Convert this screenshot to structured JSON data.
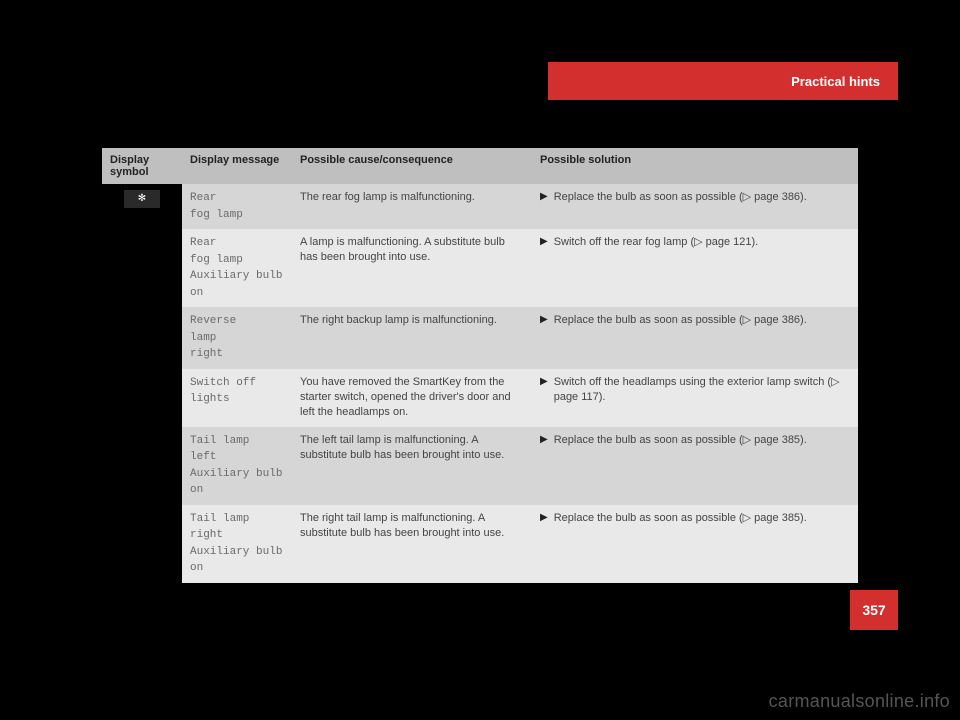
{
  "header": {
    "title": "Practical hints"
  },
  "page_number": "357",
  "watermark": "carmanualsonline.info",
  "table": {
    "columns": [
      "Display symbol",
      "Display message",
      "Possible cause/consequence",
      "Possible solution"
    ],
    "symbol_glyph": "✻",
    "rows": [
      {
        "message": "Rear\nfog lamp",
        "cause": "The rear fog lamp is malfunctioning.",
        "solution": "Replace the bulb as soon as possible (▷ page 386)."
      },
      {
        "message": "Rear\nfog lamp\nAuxiliary bulb\non",
        "cause": "A lamp is malfunctioning. A substitute bulb has been brought into use.",
        "solution": "Switch off the rear fog lamp (▷ page 121)."
      },
      {
        "message": "Reverse\nlamp\nright",
        "cause": "The right backup lamp is malfunctioning.",
        "solution": "Replace the bulb as soon as possible (▷ page 386)."
      },
      {
        "message": "Switch off\nlights",
        "cause": "You have removed the SmartKey from the starter switch, opened the driver's door and left the headlamps on.",
        "solution": "Switch off the headlamps using the exterior lamp switch (▷ page 117)."
      },
      {
        "message": "Tail lamp\nleft\nAuxiliary bulb\non",
        "cause": "The left tail lamp is malfunctioning. A substitute bulb has been brought into use.",
        "solution": "Replace the bulb as soon as possible (▷ page 385)."
      },
      {
        "message": "Tail lamp\nright\nAuxiliary bulb\non",
        "cause": "The right tail lamp is malfunctioning. A substitute bulb has been brought into use.",
        "solution": "Replace the bulb as soon as possible (▷ page 385)."
      }
    ]
  },
  "colors": {
    "accent": "#d32f2f",
    "bg": "#000000",
    "th_bg": "#bfbfbf",
    "row_odd": "#d6d6d6",
    "row_even": "#e9e9e9"
  }
}
